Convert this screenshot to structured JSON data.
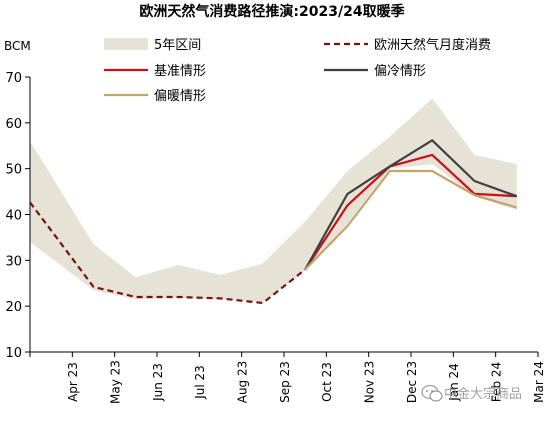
{
  "chart_data": {
    "type": "line",
    "title": "欧洲天然气消费路径推演:2023/24取暖季",
    "ylabel": "BCM",
    "ylim": [
      10,
      70
    ],
    "yticks": [
      10,
      20,
      30,
      40,
      50,
      60,
      70
    ],
    "categories": [
      "Apr 23",
      "May 23",
      "Jun 23",
      "Jul 23",
      "Aug 23",
      "Sep 23",
      "Oct 23",
      "Nov 23",
      "Dec 23",
      "Jan 24",
      "Feb 24",
      "Mar 24"
    ],
    "band": {
      "name": "5年区间",
      "color": "#e6e2d6",
      "lower": [
        30.5,
        23.5,
        21.5,
        21.8,
        21.5,
        20.8,
        27.8,
        38.0,
        50.0,
        51.0,
        44.0,
        41.0
      ],
      "upper": [
        48.5,
        33.5,
        26.3,
        29.0,
        26.8,
        29.3,
        38.5,
        49.5,
        57.0,
        65.3,
        53.0,
        51.0
      ]
    },
    "series": [
      {
        "name": "欧洲天然气月度消费",
        "color": "#7b1012",
        "style": "dashed",
        "values": [
          36.5,
          24.2,
          22.0,
          22.0,
          21.7,
          20.7,
          28.0,
          null,
          null,
          null,
          null,
          null
        ]
      },
      {
        "name": "基准情形",
        "color": "#c8101a",
        "style": "solid",
        "values": [
          null,
          null,
          null,
          null,
          null,
          null,
          28.0,
          42.0,
          50.5,
          53.0,
          44.5,
          44.0
        ]
      },
      {
        "name": "偏冷情形",
        "color": "#404040",
        "style": "solid",
        "values": [
          null,
          null,
          null,
          null,
          null,
          null,
          28.0,
          44.5,
          50.5,
          56.2,
          47.3,
          44.0
        ]
      },
      {
        "name": "偏暖情形",
        "color": "#c4a46a",
        "style": "solid",
        "values": [
          null,
          null,
          null,
          null,
          null,
          null,
          28.0,
          37.5,
          49.5,
          49.5,
          44.2,
          41.5
        ]
      }
    ],
    "grid": false,
    "legend_position": "top"
  },
  "watermark": "中金大宗商品"
}
